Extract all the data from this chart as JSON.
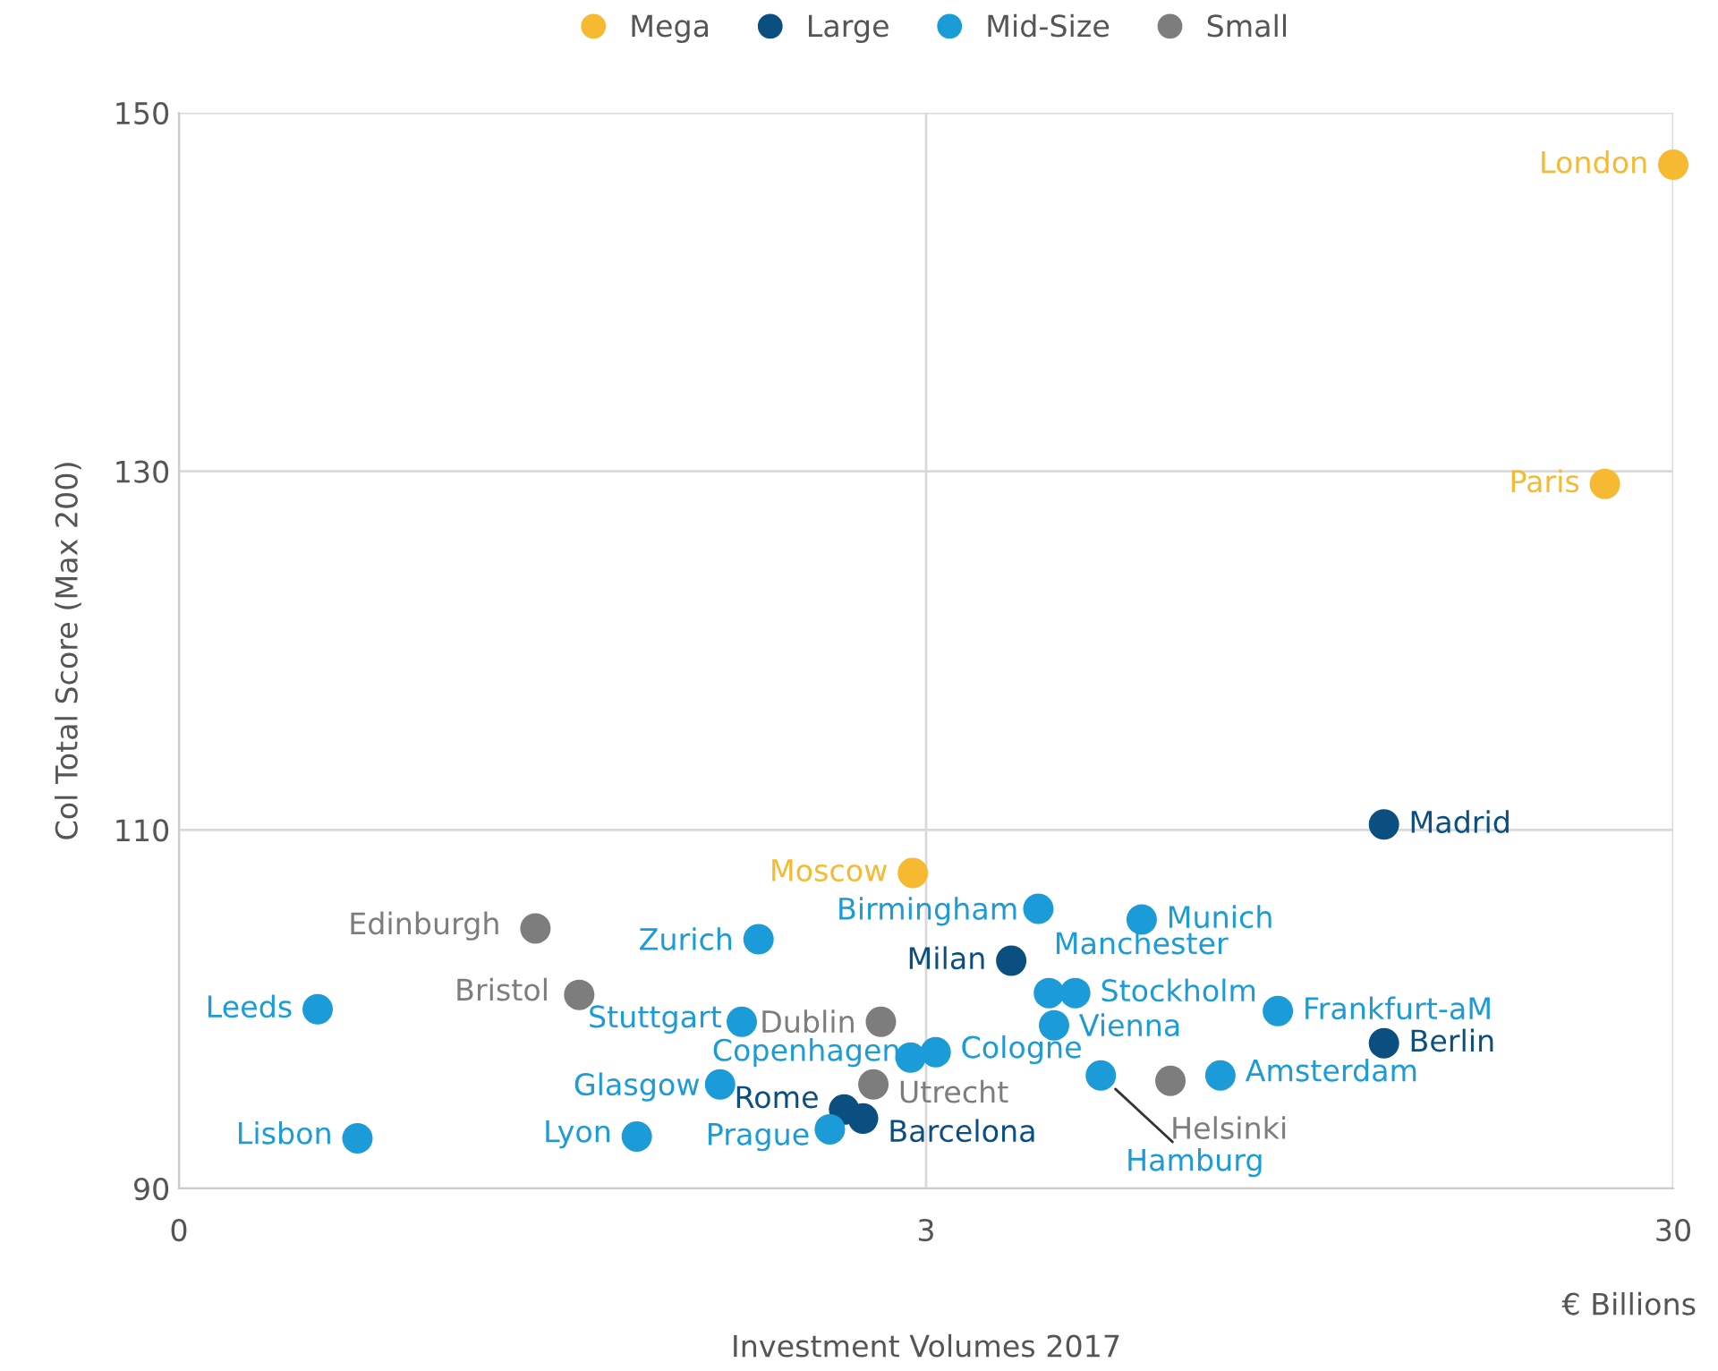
{
  "chart_data": {
    "type": "scatter",
    "xlabel": "Investment Volumes 2017",
    "ylabel": "Col Total Score (Max 200)",
    "log": "x",
    "xlim": [
      0.3,
      30
    ],
    "xticks": [
      {
        "value": 0.3,
        "label": "0"
      },
      3,
      30
    ],
    "ylim": [
      90,
      150
    ],
    "yticks": [
      90,
      110,
      130,
      150
    ],
    "grid": true,
    "legend": "top",
    "marker": "circle",
    "series": [
      {
        "name": "Mega",
        "color": "#f6b932",
        "x": [
          30,
          24.3,
          2.88
        ],
        "values": [
          147.1,
          129.3,
          107.6
        ]
      },
      {
        "name": "Large",
        "color": "#0b4f80",
        "x": [
          12.3,
          3.9,
          12.3,
          2.33,
          2.47
        ],
        "values": [
          110.3,
          102.7,
          98.1,
          94.4,
          93.9
        ]
      },
      {
        "name": "Mid-Size",
        "color": "#1b9bd7",
        "x": [
          1.79,
          4.24,
          5.83,
          4.38,
          4.75,
          0.46,
          8.87,
          1.7,
          4.45,
          2.86,
          3.09,
          1.59,
          5.14,
          7.43,
          2.23,
          0.52,
          1.23
        ],
        "values": [
          103.9,
          105.6,
          105.0,
          100.9,
          100.9,
          100.0,
          99.9,
          99.3,
          99.1,
          97.3,
          97.6,
          95.8,
          96.3,
          96.3,
          93.3,
          92.8,
          92.9
        ]
      },
      {
        "name": "Small",
        "color": "#7d7d7d",
        "x": [
          0.9,
          1.03,
          2.61,
          6.37,
          2.55
        ],
        "values": [
          104.5,
          100.8,
          99.3,
          96.0,
          95.8
        ]
      }
    ],
    "annotations": [
      {
        "text": "London",
        "x": 30,
        "y": 147.1
      },
      {
        "text": "Paris",
        "x": 24.3,
        "y": 129.3
      },
      {
        "text": "Moscow",
        "x": 2.88,
        "y": 107.6
      },
      {
        "text": "Madrid",
        "x": 12.3,
        "y": 110.3
      },
      {
        "text": "Milan",
        "x": 3.9,
        "y": 102.7
      },
      {
        "text": "Berlin",
        "x": 12.3,
        "y": 98.1
      },
      {
        "text": "Rome",
        "x": 2.33,
        "y": 94.4
      },
      {
        "text": "Barcelona",
        "x": 2.47,
        "y": 93.9
      },
      {
        "text": "Zurich",
        "x": 1.79,
        "y": 103.9
      },
      {
        "text": "Birmingham",
        "x": 4.24,
        "y": 105.6
      },
      {
        "text": "Munich",
        "x": 5.83,
        "y": 105.0
      },
      {
        "text": "Manchester",
        "x": 4.38,
        "y": 100.9
      },
      {
        "text": "Stockholm",
        "x": 4.75,
        "y": 100.9
      },
      {
        "text": "Leeds",
        "x": 0.46,
        "y": 100.0
      },
      {
        "text": "Frankfurt-aM",
        "x": 8.87,
        "y": 99.9
      },
      {
        "text": "Stuttgart",
        "x": 1.7,
        "y": 99.3
      },
      {
        "text": "Vienna",
        "x": 4.45,
        "y": 99.1
      },
      {
        "text": "Copenhagen",
        "x": 2.86,
        "y": 97.3
      },
      {
        "text": "Cologne",
        "x": 3.09,
        "y": 97.6
      },
      {
        "text": "Glasgow",
        "x": 1.59,
        "y": 95.8
      },
      {
        "text": "Hamburg",
        "x": 5.14,
        "y": 96.3
      },
      {
        "text": "Amsterdam",
        "x": 7.43,
        "y": 96.3
      },
      {
        "text": "Prague",
        "x": 2.23,
        "y": 93.3
      },
      {
        "text": "Lisbon",
        "x": 0.52,
        "y": 92.8
      },
      {
        "text": "Lyon",
        "x": 1.23,
        "y": 92.9
      },
      {
        "text": "Edinburgh",
        "x": 0.9,
        "y": 104.5
      },
      {
        "text": "Bristol",
        "x": 1.03,
        "y": 100.8
      },
      {
        "text": "Dublin",
        "x": 2.61,
        "y": 99.3
      },
      {
        "text": "Helsinki",
        "x": 6.37,
        "y": 96.0
      },
      {
        "text": "Utrecht",
        "x": 2.55,
        "y": 95.8
      },
      "€ Billions"
    ]
  }
}
